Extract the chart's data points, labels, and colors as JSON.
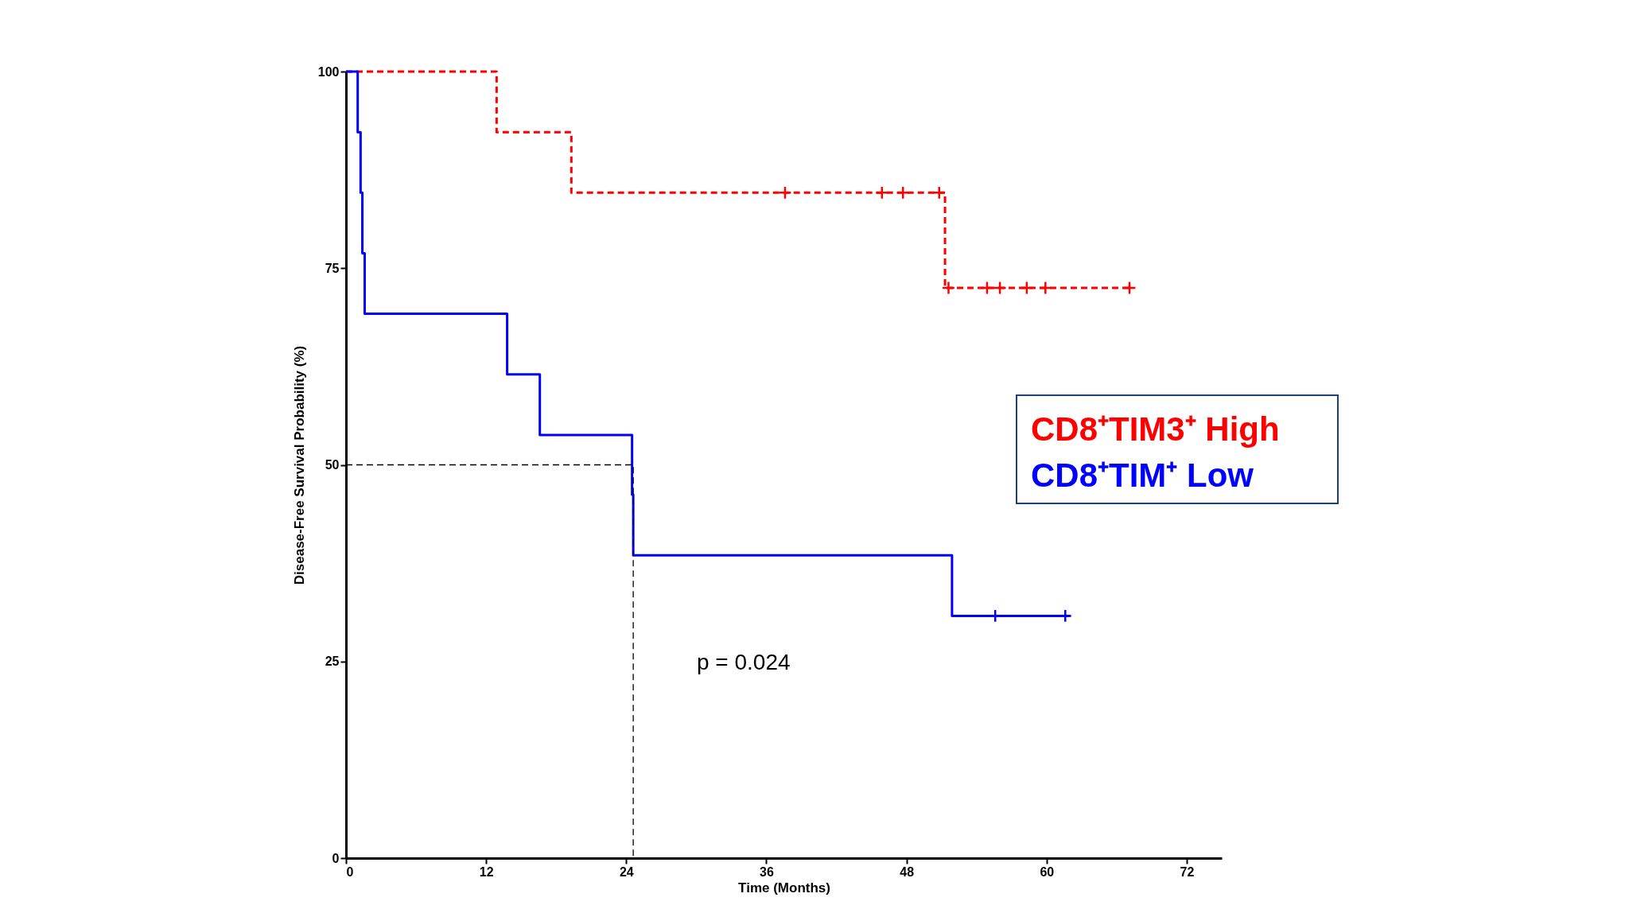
{
  "chart_data": {
    "type": "step",
    "xlabel": "Time (Months)",
    "ylabel": "Disease-Free Survival Probability (%)",
    "xlim": [
      0,
      75
    ],
    "ylim": [
      0,
      100
    ],
    "xticks": [
      0,
      12,
      24,
      36,
      48,
      60,
      72
    ],
    "yticks": [
      0,
      25,
      50,
      75,
      100
    ],
    "grid": false,
    "legend": "right",
    "annotations": [
      "p = 0.024"
    ],
    "series": [
      {
        "name": "CD8⁺TIM3⁺ High",
        "color": "#ff0000",
        "line_style": "dashed",
        "x": [
          0,
          12.9,
          19.3,
          51.3,
          67.1
        ],
        "values": [
          100,
          92.3,
          84.6,
          72.5,
          72.5
        ]
      },
      {
        "type": "scatter",
        "color": "#ff0000",
        "marker": "cross",
        "x": [
          37.6,
          45.9,
          47.7,
          50.8,
          51.6,
          54.9,
          56.0,
          58.3,
          59.9,
          67.1
        ],
        "values": [
          84.6,
          84.6,
          84.6,
          84.6,
          72.5,
          72.5,
          72.5,
          72.5,
          72.5,
          72.5
        ]
      },
      {
        "name": "CD8⁺TIM⁺ Low",
        "color": "#0000ff",
        "line_style": "solid",
        "x": [
          0,
          1.0,
          1.25,
          1.4,
          1.6,
          13.8,
          16.6,
          24.5,
          24.6,
          51.9,
          62.0
        ],
        "values": [
          100,
          92.3,
          84.6,
          76.9,
          69.2,
          61.5,
          53.8,
          46.2,
          38.5,
          30.8,
          30.8
        ]
      },
      {
        "type": "scatter",
        "color": "#0000ff",
        "marker": "cross",
        "x": [
          55.6,
          61.6
        ],
        "values": [
          30.8,
          30.8
        ]
      },
      {
        "type": "line",
        "color": "#000000",
        "line_style": "dashed",
        "x": [
          0,
          24.6,
          24.6
        ],
        "values": [
          50,
          50,
          0
        ]
      }
    ]
  }
}
